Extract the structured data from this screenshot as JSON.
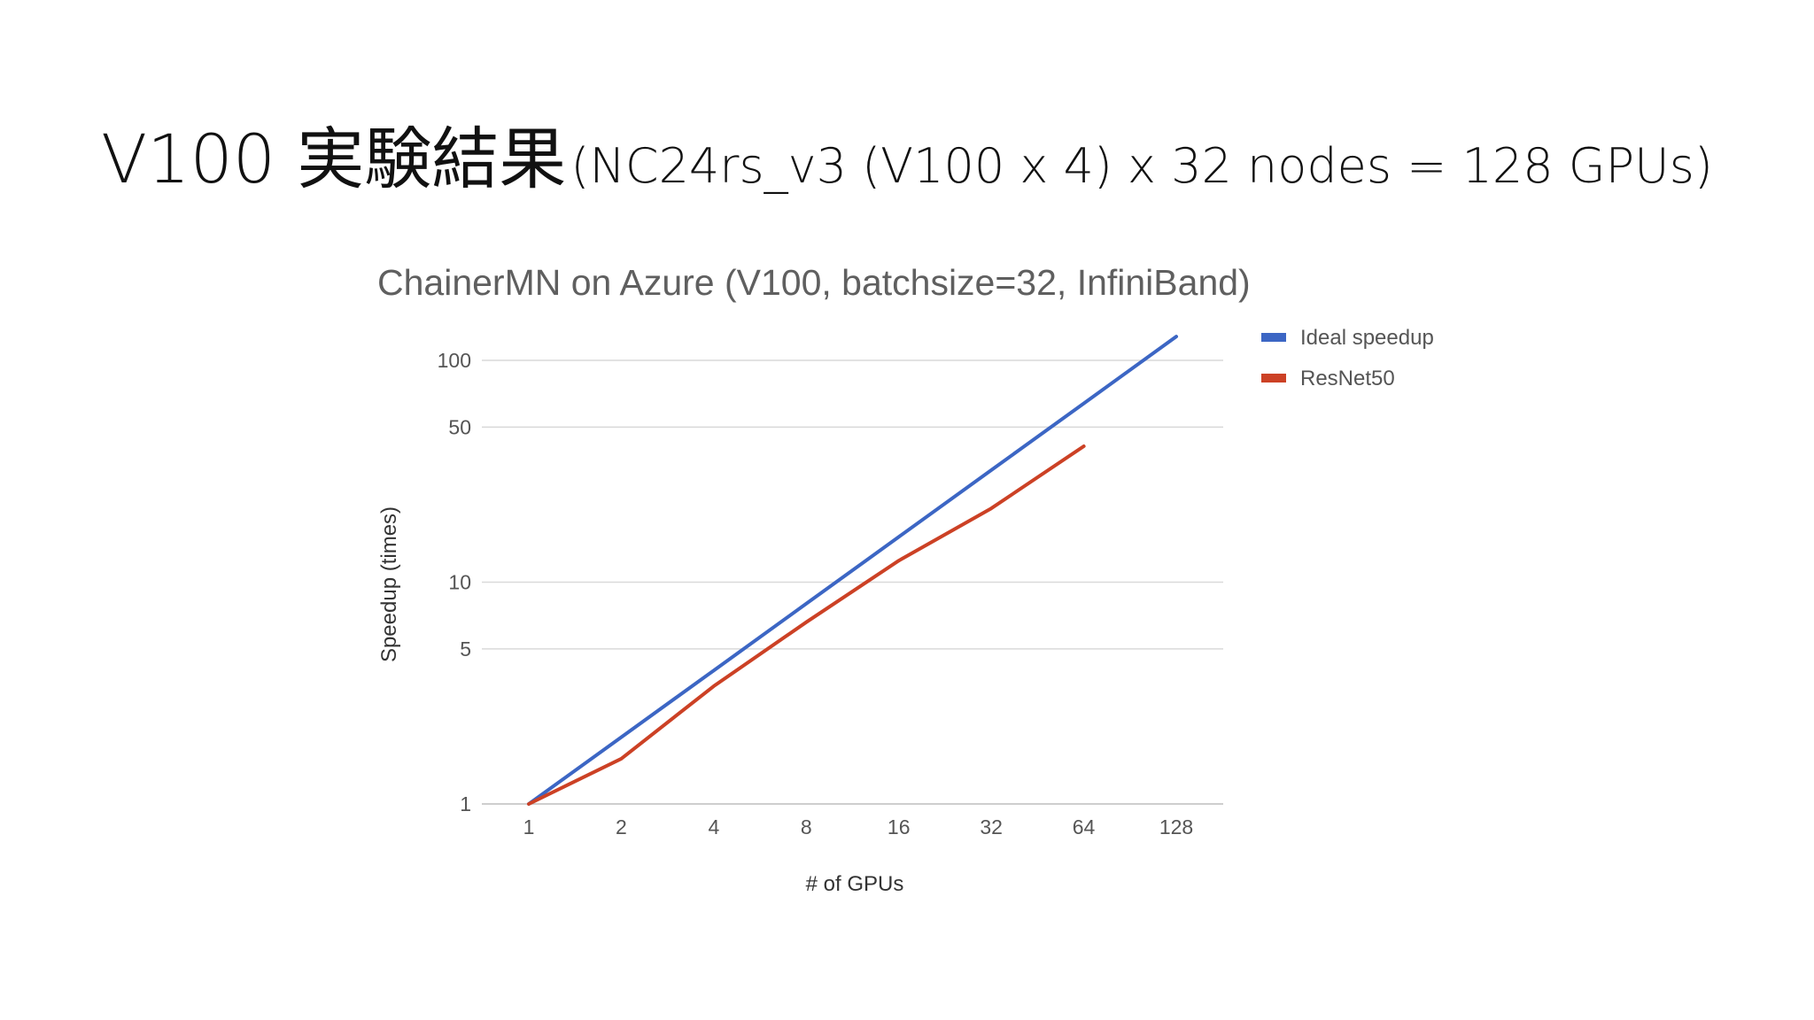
{
  "slide": {
    "title_main": "V100 実験結果",
    "title_sub": "(NC24rs_v3 (V100 x 4) x 32 nodes = 128 GPUs)"
  },
  "chart_data": {
    "type": "line",
    "title": "ChainerMN on Azure (V100, batchsize=32, InfiniBand)",
    "xlabel": "# of GPUs",
    "ylabel": "Speedup (times)",
    "x_scale": "log2",
    "y_scale": "log10",
    "categories": [
      "1",
      "2",
      "4",
      "8",
      "16",
      "32",
      "64",
      "128"
    ],
    "x": [
      1,
      2,
      4,
      8,
      16,
      32,
      64,
      128
    ],
    "y_ticks": [
      1,
      5,
      10,
      50,
      100
    ],
    "ylim": [
      1,
      100
    ],
    "grid": true,
    "legend_position": "top-right",
    "series": [
      {
        "name": "Ideal speedup",
        "color": "#3c66c4",
        "x": [
          1,
          2,
          4,
          8,
          16,
          32,
          64,
          128
        ],
        "values": [
          1,
          2,
          4,
          8,
          16,
          32,
          64,
          128
        ]
      },
      {
        "name": "ResNet50",
        "color": "#cc4125",
        "x": [
          1,
          2,
          4,
          8,
          16,
          32,
          64
        ],
        "values": [
          1,
          1.6,
          3.4,
          6.6,
          12.5,
          21.5,
          41
        ]
      }
    ]
  }
}
